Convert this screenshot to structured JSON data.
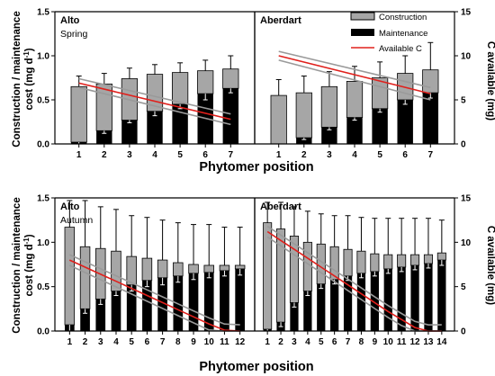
{
  "figure": {
    "y_left_label": "Construction / maintenance cost (mg d⁻¹)",
    "y_left_label_line1": "Construction / maintenance",
    "y_left_label_line2": "cost (mg d",
    "y_left_label_sup": "-1",
    "y_left_label_end": ")",
    "y_right_label": "C available (mg)",
    "x_label": "Phytomer position",
    "legend": {
      "construction": "Construction",
      "maintenance": "Maintenance",
      "available": "Available C"
    }
  },
  "colors": {
    "construction": "#a6a6a6",
    "maintenance": "#000000",
    "available": "#e0201c",
    "ci_band": "#9a9a9a"
  },
  "chart_data": [
    {
      "type": "bar",
      "title": "Alto",
      "subtitle": "Spring",
      "x": [
        1,
        2,
        3,
        4,
        5,
        6,
        7
      ],
      "x_tick_labels": [
        "1",
        "2",
        "3",
        "4",
        "5",
        "6",
        "7"
      ],
      "ylim": [
        0,
        1.5
      ],
      "y_ticks": [
        "0.0",
        "0.5",
        "1.0",
        "1.5"
      ],
      "y2lim": [
        0,
        15
      ],
      "y2_ticks": [
        "0",
        "5",
        "10",
        "15"
      ],
      "series": [
        {
          "name": "Construction",
          "values": [
            0.63,
            0.53,
            0.47,
            0.42,
            0.36,
            0.26,
            0.22
          ]
        },
        {
          "name": "Maintenance",
          "values": [
            0.02,
            0.15,
            0.27,
            0.37,
            0.45,
            0.57,
            0.63
          ]
        }
      ],
      "total_error_top": [
        0.77,
        0.8,
        0.86,
        0.9,
        0.92,
        0.95,
        1.0
      ],
      "maint_error_low": [
        0.0,
        0.12,
        0.24,
        0.32,
        0.4,
        0.5,
        0.58
      ],
      "available_c": {
        "x": [
          1,
          7
        ],
        "y": [
          6.9,
          2.8
        ],
        "band": [
          0.5,
          0.6
        ]
      }
    },
    {
      "type": "bar",
      "title": "Aberdart",
      "x": [
        1,
        2,
        3,
        4,
        5,
        6,
        7
      ],
      "x_tick_labels": [
        "1",
        "2",
        "3",
        "4",
        "5",
        "6",
        "7"
      ],
      "ylim": [
        0,
        1.5
      ],
      "y_ticks": [
        "0.0",
        "0.5",
        "1.0",
        "1.5"
      ],
      "y2lim": [
        0,
        15
      ],
      "y2_ticks": [
        "0",
        "5",
        "10",
        "15"
      ],
      "series": [
        {
          "name": "Construction",
          "values": [
            0.55,
            0.51,
            0.46,
            0.41,
            0.35,
            0.3,
            0.26
          ]
        },
        {
          "name": "Maintenance",
          "values": [
            0.0,
            0.07,
            0.19,
            0.3,
            0.4,
            0.5,
            0.58
          ]
        }
      ],
      "total_error_top": [
        0.73,
        0.77,
        0.82,
        0.88,
        0.93,
        1.0,
        1.15
      ],
      "maint_error_low": [
        0.0,
        0.05,
        0.16,
        0.27,
        0.36,
        0.45,
        0.52
      ],
      "available_c": {
        "x": [
          1,
          7
        ],
        "y": [
          10.0,
          5.7
        ],
        "band": [
          0.5,
          0.7
        ]
      }
    },
    {
      "type": "bar",
      "title": "Alto",
      "subtitle": "Autumn",
      "x": [
        1,
        2,
        3,
        4,
        5,
        6,
        7,
        8,
        9,
        10,
        11,
        12
      ],
      "x_tick_labels": [
        "1",
        "2",
        "3",
        "4",
        "5",
        "6",
        "7",
        "8",
        "9",
        "10",
        "11",
        "12"
      ],
      "ylim": [
        0,
        1.5
      ],
      "y_ticks": [
        "0.0",
        "0.5",
        "1.0",
        "1.5"
      ],
      "y2lim": [
        0,
        15
      ],
      "y2_ticks": [
        "0",
        "5",
        "10",
        "15"
      ],
      "series": [
        {
          "name": "Construction",
          "values": [
            1.1,
            0.7,
            0.57,
            0.45,
            0.32,
            0.25,
            0.2,
            0.15,
            0.1,
            0.08,
            0.06,
            0.04
          ]
        },
        {
          "name": "Maintenance",
          "values": [
            0.07,
            0.25,
            0.36,
            0.45,
            0.52,
            0.57,
            0.6,
            0.62,
            0.65,
            0.66,
            0.68,
            0.7
          ]
        }
      ],
      "total_error_top": [
        1.47,
        1.47,
        1.4,
        1.37,
        1.3,
        1.28,
        1.25,
        1.22,
        1.2,
        1.2,
        1.17,
        1.17
      ],
      "maint_error_low": [
        0.0,
        0.2,
        0.3,
        0.4,
        0.45,
        0.5,
        0.52,
        0.55,
        0.58,
        0.6,
        0.62,
        0.63
      ],
      "available_c": {
        "x": [
          1,
          2,
          3,
          4,
          5,
          6,
          7,
          8,
          9,
          10,
          11,
          12
        ],
        "y": [
          8.0,
          7.2,
          6.4,
          5.6,
          4.8,
          4.0,
          3.2,
          2.4,
          1.6,
          0.8,
          0.1,
          0.0
        ],
        "band": [
          0.6,
          0.7
        ]
      }
    },
    {
      "type": "bar",
      "title": "Aberdart",
      "x": [
        1,
        2,
        3,
        4,
        5,
        6,
        7,
        8,
        9,
        10,
        11,
        12,
        13,
        14
      ],
      "x_tick_labels": [
        "1",
        "2",
        "3",
        "4",
        "5",
        "6",
        "7",
        "8",
        "9",
        "10",
        "11",
        "12",
        "13",
        "14"
      ],
      "ylim": [
        0,
        1.5
      ],
      "y_ticks": [
        "0.0",
        "0.5",
        "1.0",
        "1.5"
      ],
      "y2lim": [
        0,
        15
      ],
      "y2_ticks": [
        "0",
        "5",
        "10",
        "15"
      ],
      "series": [
        {
          "name": "Construction",
          "values": [
            1.2,
            1.05,
            0.75,
            0.55,
            0.45,
            0.37,
            0.3,
            0.25,
            0.2,
            0.16,
            0.14,
            0.12,
            0.1,
            0.08
          ]
        },
        {
          "name": "Maintenance",
          "values": [
            0.02,
            0.1,
            0.32,
            0.45,
            0.53,
            0.58,
            0.62,
            0.65,
            0.67,
            0.7,
            0.72,
            0.74,
            0.76,
            0.8
          ]
        }
      ],
      "total_error_top": [
        1.45,
        1.45,
        1.4,
        1.35,
        1.32,
        1.3,
        1.3,
        1.28,
        1.27,
        1.27,
        1.27,
        1.27,
        1.27,
        1.25
      ],
      "maint_error_low": [
        0.0,
        0.05,
        0.27,
        0.4,
        0.48,
        0.53,
        0.57,
        0.6,
        0.62,
        0.65,
        0.67,
        0.69,
        0.71,
        0.74
      ],
      "available_c": {
        "x": [
          1,
          2,
          3,
          4,
          5,
          6,
          7,
          8,
          9,
          10,
          11,
          12,
          13,
          14
        ],
        "y": [
          11.2,
          10.2,
          9.2,
          8.2,
          7.2,
          6.2,
          5.2,
          4.2,
          3.2,
          2.2,
          1.3,
          0.4,
          0.0,
          0.0
        ],
        "band": [
          0.6,
          0.7
        ]
      }
    }
  ]
}
